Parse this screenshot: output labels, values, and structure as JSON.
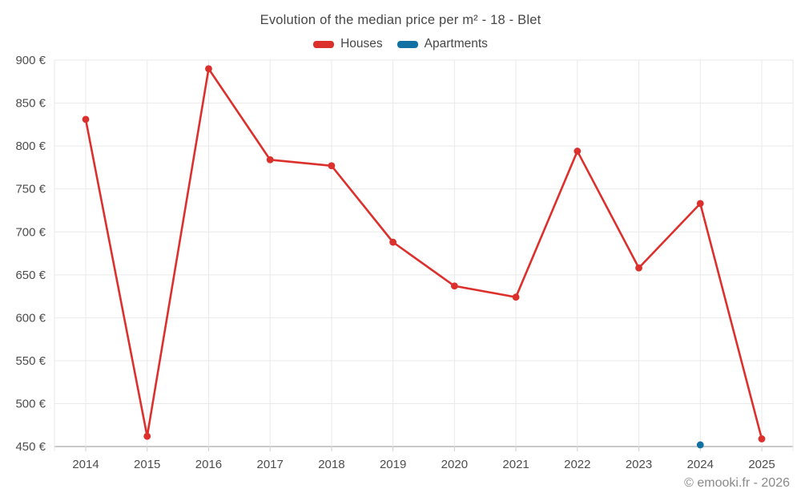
{
  "title": "Evolution of the median price per m² - 18 - Blet",
  "footer": "© emooki.fr - 2026",
  "legend": [
    {
      "label": "Houses",
      "color": "#dc302c"
    },
    {
      "label": "Apartments",
      "color": "#1271a3"
    }
  ],
  "colors": {
    "houses": "#dc302c",
    "apartments": "#1271a3",
    "gridline": "#e9e9e9",
    "axis_line": "#bdbdbd",
    "tick_mark": "#cfcfcf",
    "tick_text": "#4d4d4d",
    "title_text": "#474747",
    "footer_text": "#8a8a8a"
  },
  "chart_data": {
    "type": "line",
    "title": "Evolution of the median price per m² - 18 - Blet",
    "categories": [
      "2014",
      "2015",
      "2016",
      "2017",
      "2018",
      "2019",
      "2020",
      "2021",
      "2022",
      "2023",
      "2024",
      "2025"
    ],
    "series": [
      {
        "name": "Houses",
        "color": "#dc302c",
        "values": [
          831,
          462,
          890,
          784,
          777,
          688,
          637,
          624,
          794,
          658,
          733,
          459
        ]
      },
      {
        "name": "Apartments",
        "color": "#1271a3",
        "values": [
          null,
          null,
          null,
          null,
          null,
          null,
          null,
          null,
          null,
          null,
          452,
          null
        ]
      }
    ],
    "xlabel": "",
    "ylabel": "",
    "y_ticks": [
      450,
      500,
      550,
      600,
      650,
      700,
      750,
      800,
      850,
      900
    ],
    "y_tick_suffix": " €",
    "ylim": [
      450,
      900
    ],
    "grid": true,
    "legend_position": "top"
  }
}
